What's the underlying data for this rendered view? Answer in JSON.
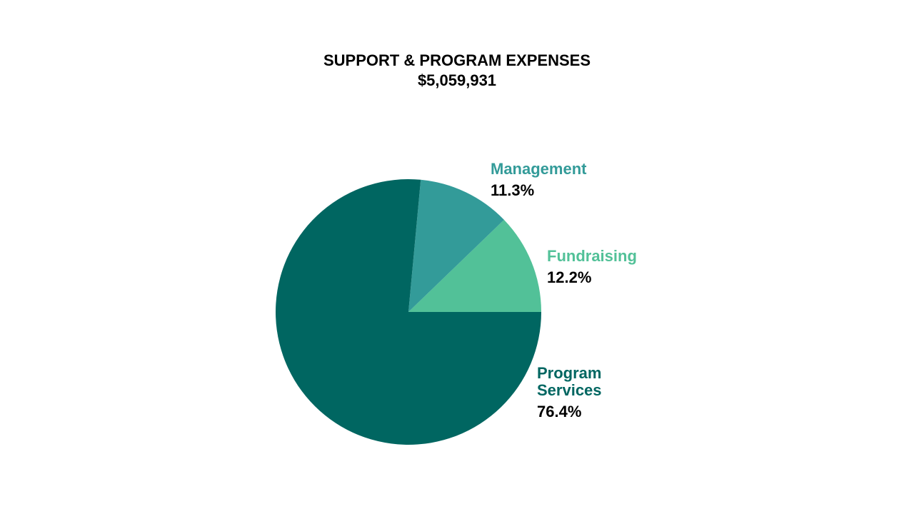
{
  "chart_data": {
    "type": "pie",
    "title": "SUPPORT & PROGRAM EXPENSES",
    "subtitle": "$5,059,931",
    "categories": [
      "Fundraising",
      "Management",
      "Program Services"
    ],
    "values": [
      12.2,
      11.3,
      76.4
    ],
    "value_labels": [
      "12.2%",
      "11.3%",
      "76.4%"
    ],
    "colors": [
      "#52c198",
      "#339b99",
      "#006661"
    ]
  }
}
